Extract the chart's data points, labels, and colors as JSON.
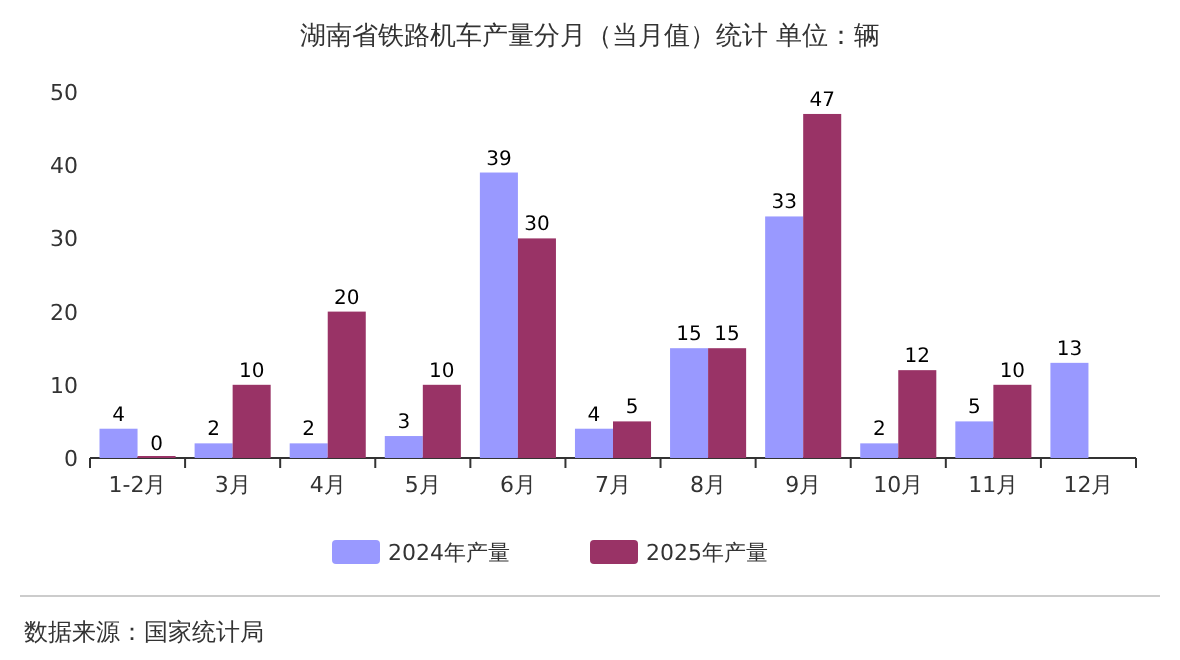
{
  "chart_data": {
    "type": "bar",
    "title": "湖南省铁路机车产量分月（当月值）统计  单位：辆",
    "categories": [
      "1-2月",
      "3月",
      "4月",
      "5月",
      "6月",
      "7月",
      "8月",
      "9月",
      "10月",
      "11月",
      "12月"
    ],
    "series": [
      {
        "name": "2024年产量",
        "color": "#9999ff",
        "values": [
          4,
          2,
          2,
          3,
          39,
          4,
          15,
          33,
          2,
          5,
          13
        ]
      },
      {
        "name": "2025年产量",
        "color": "#993366",
        "values": [
          0,
          10,
          20,
          10,
          30,
          5,
          15,
          47,
          12,
          10,
          null
        ]
      }
    ],
    "ylim": [
      0,
      50
    ],
    "yticks": [
      0,
      10,
      20,
      30,
      40,
      50
    ],
    "data_labels": true,
    "legend": "bottom",
    "annotations": [
      "数据来源：国家统计局"
    ]
  }
}
